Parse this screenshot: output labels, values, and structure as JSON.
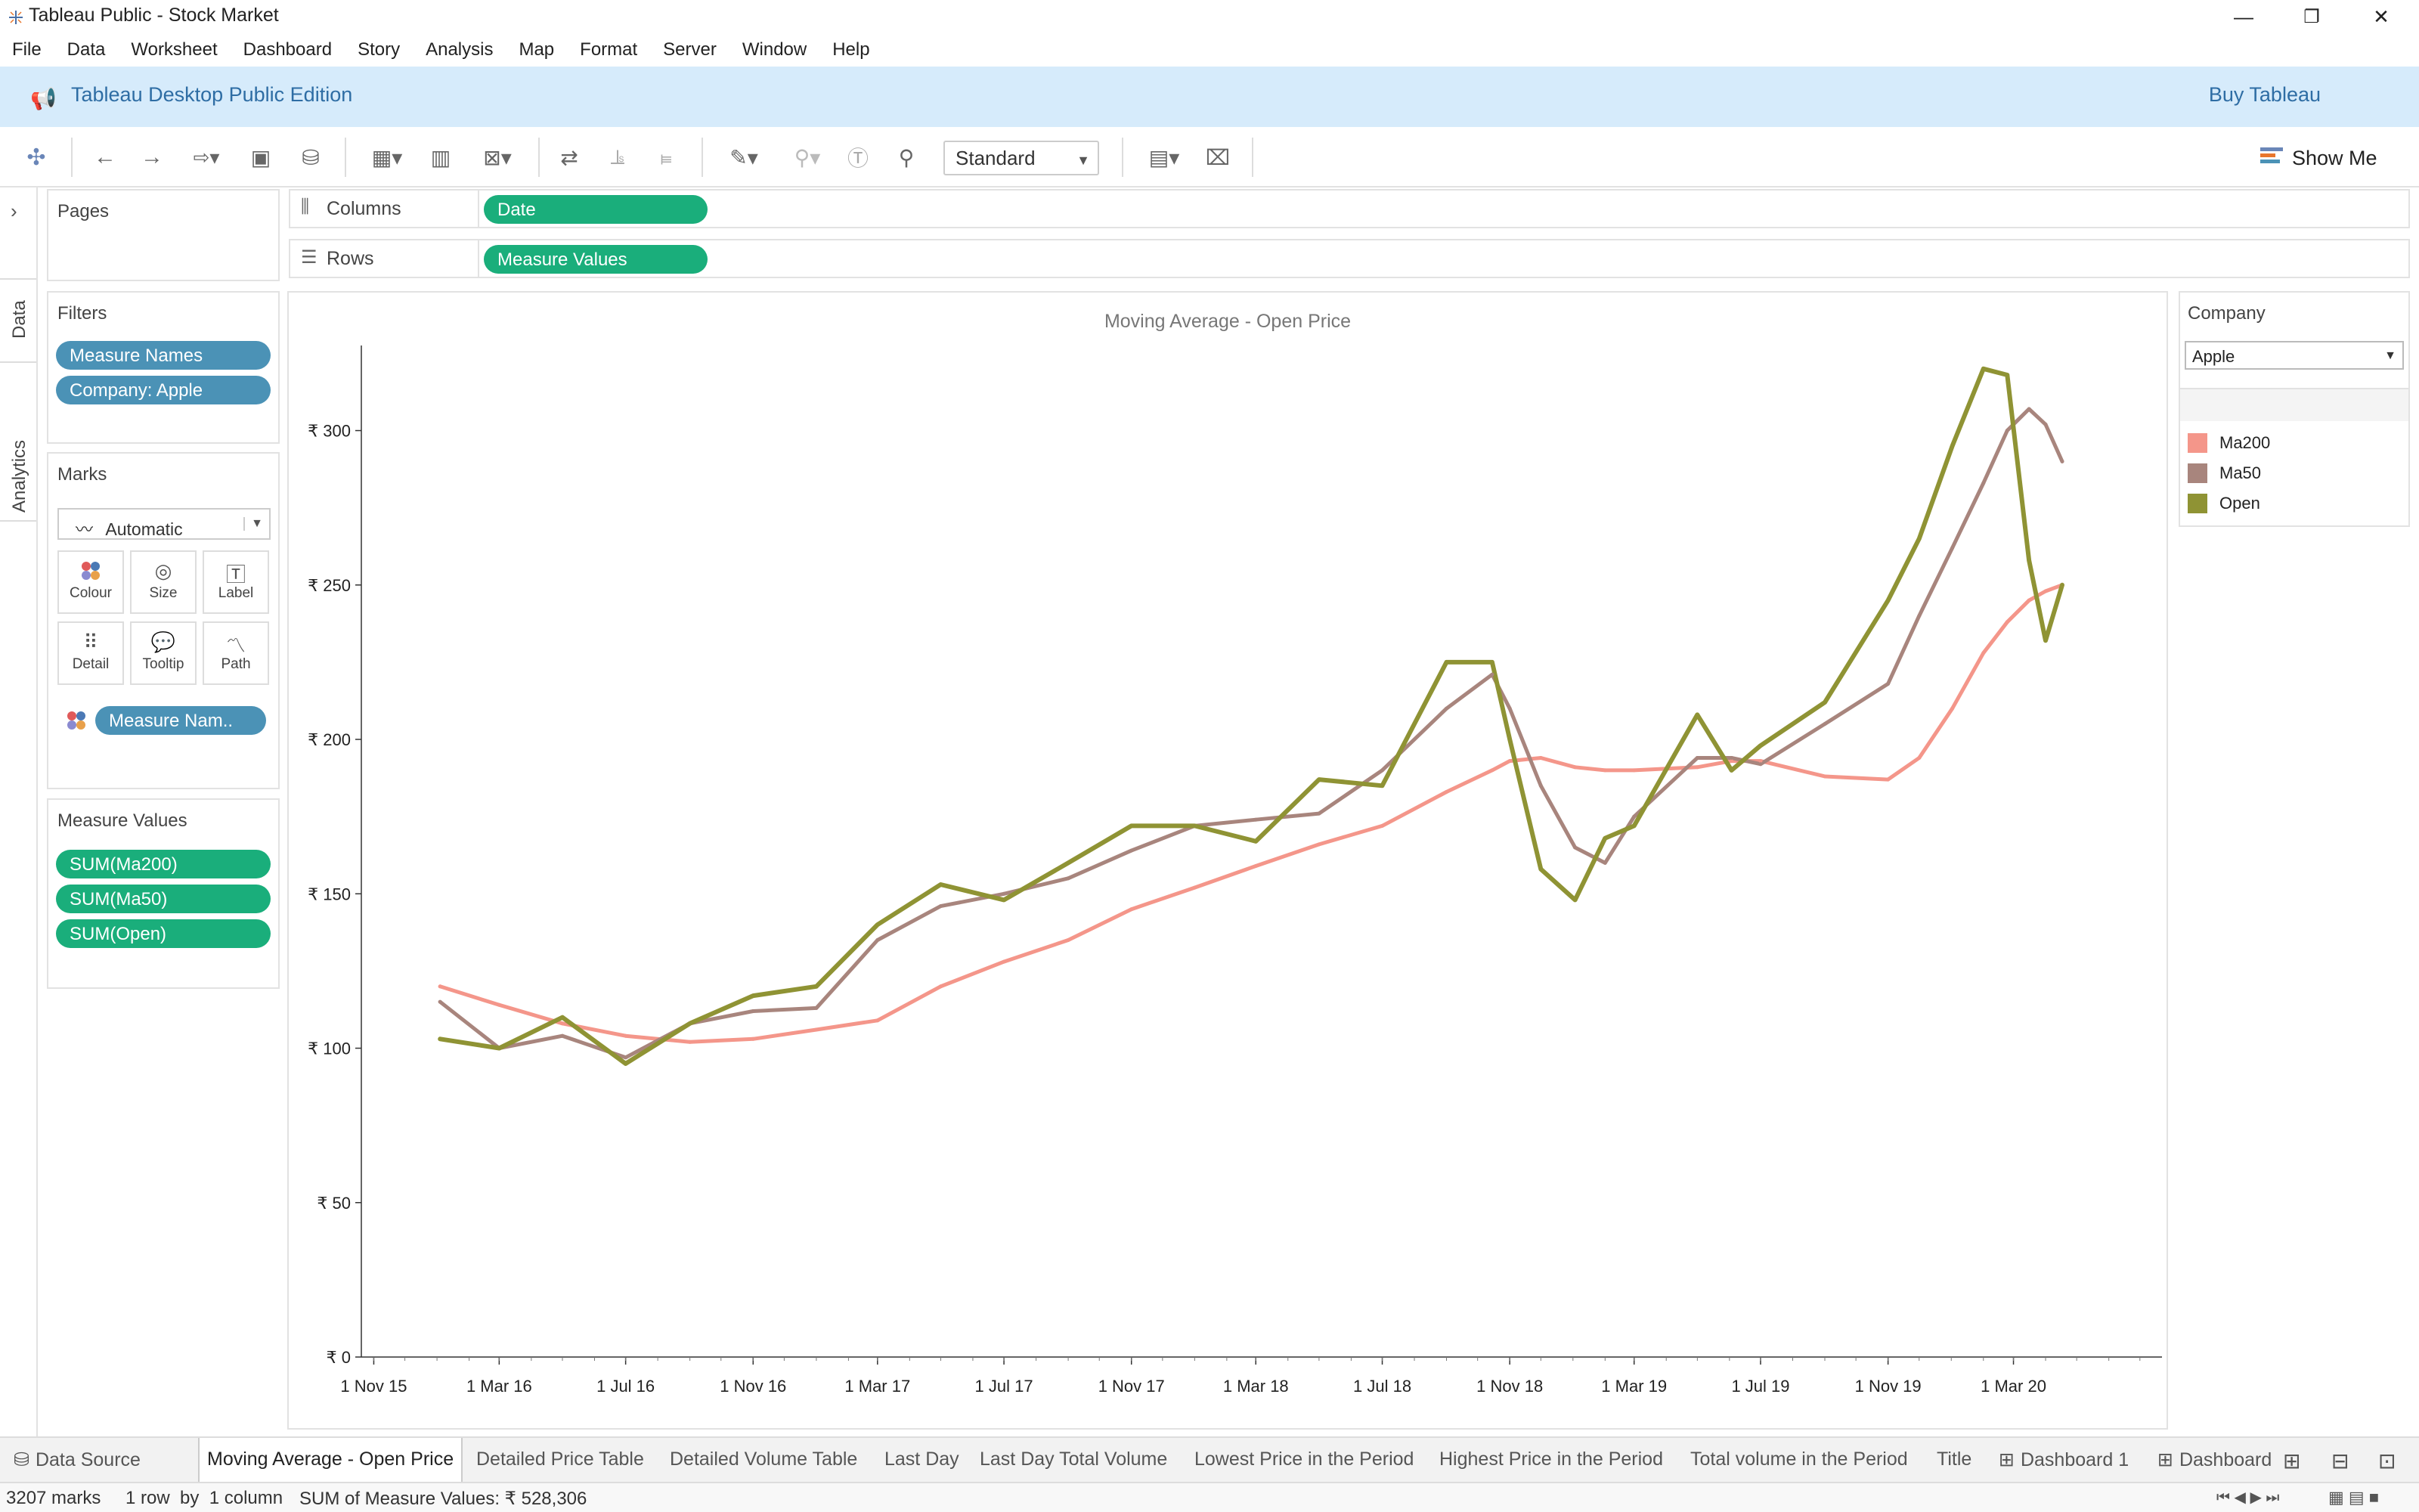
{
  "window": {
    "title": "Tableau Public - Stock Market",
    "min": "—",
    "max": "❐",
    "close": "✕"
  },
  "menu": [
    "File",
    "Data",
    "Worksheet",
    "Dashboard",
    "Story",
    "Analysis",
    "Map",
    "Format",
    "Server",
    "Window",
    "Help"
  ],
  "banner": {
    "text": "Tableau Desktop Public Edition",
    "buy": "Buy Tableau"
  },
  "toolbar": {
    "fit": "Standard",
    "show_me": "Show Me"
  },
  "side_tabs": {
    "data": "Data",
    "analytics": "Analytics"
  },
  "pages": {
    "title": "Pages"
  },
  "filters": {
    "title": "Filters",
    "items": [
      "Measure Names",
      "Company: Apple"
    ]
  },
  "marks": {
    "title": "Marks",
    "type": "Automatic",
    "buttons": [
      "Colour",
      "Size",
      "Label",
      "Detail",
      "Tooltip",
      "Path"
    ],
    "color_pill": "Measure Nam.."
  },
  "measure_values": {
    "title": "Measure Values",
    "items": [
      "SUM(Ma200)",
      "SUM(Ma50)",
      "SUM(Open)"
    ]
  },
  "shelves": {
    "columns_label": "Columns",
    "columns_pill": "Date",
    "rows_label": "Rows",
    "rows_pill": "Measure Values"
  },
  "filter_card": {
    "title": "Company",
    "value": "Apple"
  },
  "legend": [
    {
      "name": "Ma200",
      "color": "#f4968a"
    },
    {
      "name": "Ma50",
      "color": "#a8857d"
    },
    {
      "name": "Open",
      "color": "#8f9334"
    }
  ],
  "chart_data": {
    "type": "line",
    "title": "Moving Average - Open Price",
    "xlabel": "",
    "ylabel": "",
    "x_ticks": [
      "1 Nov 15",
      "1 Mar 16",
      "1 Jul 16",
      "1 Nov 16",
      "1 Mar 17",
      "1 Jul 17",
      "1 Nov 17",
      "1 Mar 18",
      "1 Jul 18",
      "1 Nov 18",
      "1 Mar 19",
      "1 Jul 19",
      "1 Nov 19",
      "1 Mar 20"
    ],
    "y_ticks": [
      "₹ 0",
      "₹ 50",
      "₹ 100",
      "₹ 150",
      "₹ 200",
      "₹ 250",
      "₹ 300"
    ],
    "ylim": [
      0,
      330
    ],
    "xlim": [
      "2015-10-20",
      "2020-07-15"
    ],
    "grid": false,
    "x": [
      "2016-01-04",
      "2016-03-01",
      "2016-05-01",
      "2016-07-01",
      "2016-09-01",
      "2016-11-01",
      "2017-01-01",
      "2017-03-01",
      "2017-05-01",
      "2017-07-01",
      "2017-09-01",
      "2017-11-01",
      "2018-01-01",
      "2018-03-01",
      "2018-05-01",
      "2018-07-01",
      "2018-09-01",
      "2018-10-15",
      "2018-11-01",
      "2018-12-01",
      "2019-01-03",
      "2019-02-01",
      "2019-03-01",
      "2019-05-01",
      "2019-06-03",
      "2019-07-01",
      "2019-09-01",
      "2019-11-01",
      "2019-12-01",
      "2020-01-02",
      "2020-02-01",
      "2020-02-24",
      "2020-03-16",
      "2020-04-01",
      "2020-04-17"
    ],
    "series": [
      {
        "name": "Ma200",
        "color": "#f4968a",
        "values": [
          120,
          114,
          108,
          104,
          102,
          103,
          106,
          109,
          120,
          128,
          135,
          145,
          152,
          159,
          166,
          172,
          183,
          190,
          193,
          194,
          191,
          190,
          190,
          191,
          193,
          193,
          188,
          187,
          194,
          210,
          228,
          238,
          245,
          248,
          250
        ]
      },
      {
        "name": "Ma50",
        "color": "#a8857d",
        "values": [
          115,
          100,
          104,
          97,
          108,
          112,
          113,
          135,
          146,
          150,
          155,
          164,
          172,
          174,
          176,
          190,
          210,
          221,
          210,
          185,
          165,
          160,
          175,
          194,
          194,
          192,
          205,
          218,
          240,
          262,
          283,
          300,
          307,
          302,
          290
        ]
      },
      {
        "name": "Open",
        "color": "#8f9334",
        "values": [
          103,
          100,
          110,
          95,
          108,
          117,
          120,
          140,
          153,
          148,
          160,
          172,
          172,
          167,
          187,
          185,
          225,
          225,
          200,
          158,
          148,
          168,
          172,
          208,
          190,
          198,
          212,
          245,
          265,
          295,
          320,
          318,
          258,
          232,
          250
        ]
      }
    ]
  },
  "tabs": [
    "Data Source",
    "Moving Average - Open Price",
    "Detailed Price Table",
    "Detailed Volume Table",
    "Last Day",
    "Last Day Total Volume",
    "Lowest Price in the Period",
    "Highest Price in the Period",
    "Total volume in the Period",
    "Title",
    "Dashboard 1",
    "Dashboard"
  ],
  "status": {
    "marks": "3207 marks",
    "rows": "1 row  by  1 column",
    "sum": "SUM of Measure Values: ₹ 528,306"
  }
}
